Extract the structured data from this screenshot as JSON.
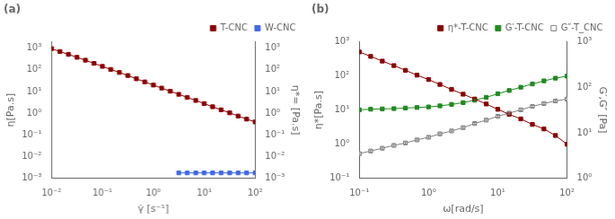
{
  "chart_data": [
    {
      "type": "scatter",
      "annotations": [
        "(a)"
      ],
      "xlabel": "γ̇ [s⁻¹]",
      "ylabel": "η[Pa.s]",
      "y2label": "η*= [Pa.s]",
      "log": true,
      "grid": false,
      "legend": "upper right",
      "line_style": "solid",
      "xlim": [
        0.01,
        100
      ],
      "xticks": [
        {
          "value": 0.01,
          "label": "10⁻²"
        },
        {
          "value": 0.1,
          "label": "10⁻¹"
        },
        {
          "value": 1,
          "label": "10⁰"
        },
        {
          "value": 10,
          "label": "10¹"
        },
        {
          "value": 100,
          "label": "10²"
        }
      ],
      "ylim": [
        0.001,
        2000
      ],
      "yticks": [
        {
          "value": 0.001,
          "label": "10⁻³"
        },
        {
          "value": 0.01,
          "label": "10⁻²"
        },
        {
          "value": 0.1,
          "label": "10⁻¹"
        },
        {
          "value": 1,
          "label": "10⁰"
        },
        {
          "value": 10,
          "label": "10¹"
        },
        {
          "value": 100,
          "label": "10²"
        },
        {
          "value": 1000,
          "label": "10³"
        }
      ],
      "y2lim": [
        0.001,
        2000
      ],
      "y2ticks": [
        {
          "value": 0.001,
          "label": "10⁻³"
        },
        {
          "value": 0.01,
          "label": "10⁻²"
        },
        {
          "value": 0.1,
          "label": "10⁻¹"
        },
        {
          "value": 1,
          "label": "10⁰"
        },
        {
          "value": 10,
          "label": "10¹"
        },
        {
          "value": 100,
          "label": "10²"
        },
        {
          "value": 1000,
          "label": "10³"
        }
      ],
      "series": [
        {
          "name": "T-CNC",
          "color": "#8B0000",
          "marker": "square",
          "x": [
            0.01,
            0.0146,
            0.0215,
            0.0316,
            0.0464,
            0.0681,
            0.1,
            0.146,
            0.215,
            0.316,
            0.464,
            0.681,
            1.0,
            1.46,
            2.15,
            3.16,
            4.64,
            6.81,
            10.0,
            14.6,
            21.5,
            31.6,
            46.4,
            68.1,
            100.0
          ],
          "values": [
            950,
            700,
            520,
            380,
            280,
            200,
            145,
            105,
            76,
            55,
            39,
            28,
            20,
            14.5,
            10.4,
            7.5,
            5.4,
            3.9,
            2.8,
            2.0,
            1.45,
            1.05,
            0.75,
            0.54,
            0.4
          ],
          "yerr": [
            47.5,
            35,
            26,
            19,
            14,
            10,
            7.25,
            5.25,
            3.8,
            2.75,
            1.95,
            1.4,
            1,
            0.725,
            0.52,
            0.375,
            0.27,
            0.195,
            0.14,
            0.1,
            0.0725,
            0.0525,
            0.0375,
            0.027,
            0.02
          ]
        },
        {
          "name": "W-CNC",
          "color": "#4169E1",
          "marker": "square",
          "x": [
            3.16,
            4.64,
            6.81,
            10.0,
            14.6,
            21.5,
            31.6,
            46.4,
            68.1,
            100.0
          ],
          "values": [
            0.0018,
            0.0018,
            0.0018,
            0.0018,
            0.0018,
            0.0018,
            0.0018,
            0.0018,
            0.0018,
            0.0018
          ],
          "yerr": [
            9e-05,
            9e-05,
            9e-05,
            9e-05,
            9e-05,
            9e-05,
            9e-05,
            9e-05,
            9e-05,
            9e-05
          ]
        }
      ]
    },
    {
      "type": "scatter",
      "annotations": [
        "(b)"
      ],
      "xlabel": "ω[rad/s]",
      "ylabel": "η*[Pa.s]",
      "y2label": "G′,G″ [Pa]",
      "log": true,
      "grid": false,
      "legend": "upper right",
      "line_style": "solid",
      "xlim": [
        0.1,
        100
      ],
      "xticks": [
        {
          "value": 0.1,
          "label": "10⁻¹"
        },
        {
          "value": 1,
          "label": "10⁰"
        },
        {
          "value": 10,
          "label": "10¹"
        },
        {
          "value": 100,
          "label": "10²"
        }
      ],
      "ylim": [
        0.1,
        1000
      ],
      "yticks": [
        {
          "value": 0.1,
          "label": "10⁻¹"
        },
        {
          "value": 1,
          "label": "10⁰"
        },
        {
          "value": 10,
          "label": "10¹"
        },
        {
          "value": 100,
          "label": "10²"
        },
        {
          "value": 1000,
          "label": "10³"
        }
      ],
      "y2lim": [
        1,
        1000
      ],
      "y2ticks": [
        {
          "value": 1,
          "label": "10⁰"
        },
        {
          "value": 10,
          "label": "10¹"
        },
        {
          "value": 100,
          "label": "10²"
        },
        {
          "value": 1000,
          "label": "10³"
        }
      ],
      "series": [
        {
          "name": "η*-T-CNC",
          "color": "#8B0000",
          "marker": "square",
          "x": [
            0.1,
            0.146,
            0.215,
            0.316,
            0.464,
            0.681,
            1.0,
            1.46,
            2.15,
            3.16,
            4.64,
            6.81,
            10.0,
            14.6,
            21.5,
            31.6,
            46.4,
            68.1,
            100.0
          ],
          "values": [
            500,
            370,
            270,
            200,
            145,
            105,
            78,
            56,
            40,
            29,
            21,
            15,
            10.5,
            7.5,
            5.5,
            3.8,
            2.8,
            1.8,
            1.0
          ],
          "yerr": [
            30,
            22.2,
            16.2,
            12,
            8.7,
            6.3,
            4.68,
            3.36,
            2.4,
            1.74,
            1.26,
            0.9,
            0.63,
            0.45,
            0.33,
            0.228,
            0.168,
            0.108,
            0.06
          ]
        },
        {
          "name": "G′-T-CNC",
          "color": "#228B22",
          "marker": "square",
          "axis": "y2",
          "x": [
            0.1,
            0.146,
            0.215,
            0.316,
            0.464,
            0.681,
            1.0,
            1.46,
            2.15,
            3.16,
            4.64,
            6.81,
            10.0,
            14.6,
            21.5,
            31.6,
            46.4,
            68.1,
            100.0
          ],
          "values": [
            32,
            33,
            33.5,
            34,
            35,
            36,
            37,
            39,
            42,
            46,
            52,
            60,
            72,
            85,
            100,
            118,
            138,
            158,
            175
          ],
          "yerr": [
            1.6,
            1.65,
            1.675,
            1.7,
            1.75,
            1.8,
            1.85,
            1.95,
            2.1,
            2.3,
            2.6,
            3,
            3.6,
            4.25,
            5,
            5.9,
            6.9,
            7.9,
            8.75
          ]
        },
        {
          "name": "G″-T_CNC",
          "color": "#808080",
          "marker": "open square",
          "axis": "y2",
          "x": [
            0.1,
            0.146,
            0.215,
            0.316,
            0.464,
            0.681,
            1.0,
            1.46,
            2.15,
            3.16,
            4.64,
            6.81,
            10.0,
            14.6,
            21.5,
            31.6,
            46.4,
            68.1,
            100.0
          ],
          "values": [
            3.5,
            4.0,
            4.6,
            5.3,
            6.0,
            7.0,
            8.0,
            9.5,
            11,
            13,
            16,
            19,
            23,
            27,
            32,
            38,
            44,
            50,
            55
          ],
          "yerr": [
            0.175,
            0.2,
            0.23,
            0.265,
            0.3,
            0.35,
            0.4,
            0.475,
            0.55,
            0.65,
            0.8,
            0.95,
            1.15,
            1.35,
            1.6,
            1.9,
            2.2,
            2.5,
            2.75
          ]
        }
      ]
    }
  ]
}
